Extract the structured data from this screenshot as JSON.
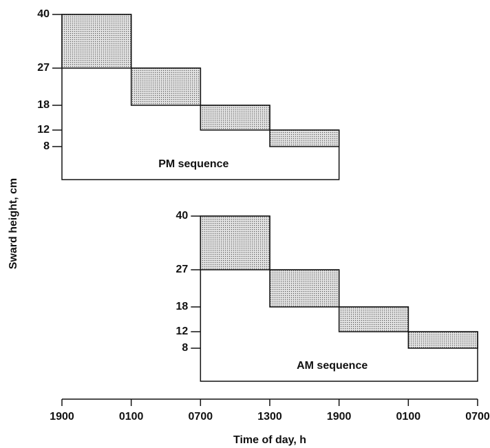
{
  "chart_data": {
    "type": "step-bands",
    "y_label": "Sward height, cm",
    "x_label": "Time of day, h",
    "xticks": [
      {
        "value": 0,
        "label": "1900"
      },
      {
        "value": 1,
        "label": "0100"
      },
      {
        "value": 2,
        "label": "0700"
      },
      {
        "value": 3,
        "label": "1300"
      },
      {
        "value": 4,
        "label": "1900"
      },
      {
        "value": 5,
        "label": "0100"
      },
      {
        "value": 6,
        "label": "0700"
      }
    ],
    "xlim": [
      0,
      6
    ],
    "panels": [
      {
        "label": "PM sequence",
        "x": [
          0,
          1,
          2,
          3,
          4
        ],
        "upper": [
          40,
          27,
          18,
          12
        ],
        "lower": [
          27,
          18,
          12,
          8
        ],
        "ylim": [
          0,
          40
        ],
        "yticks": [
          8,
          12,
          18,
          27,
          40
        ]
      },
      {
        "label": "AM sequence",
        "x": [
          2,
          3,
          4,
          5,
          6
        ],
        "upper": [
          40,
          27,
          18,
          12
        ],
        "lower": [
          27,
          18,
          12,
          8
        ],
        "ylim": [
          0,
          40
        ],
        "yticks": [
          8,
          12,
          18,
          27,
          40
        ]
      }
    ]
  }
}
